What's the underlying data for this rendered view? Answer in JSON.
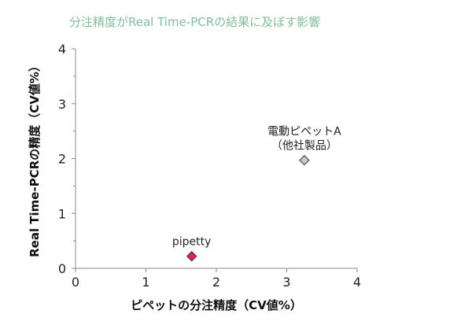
{
  "chart_data": {
    "type": "scatter",
    "title": "分注精度がReal Time-PCRの結果に及ぼす影響",
    "xlabel": "ピペットの分注精度（CV値%）",
    "ylabel": "Real Time-PCRの精度（CV値%）",
    "xlim": [
      0,
      4
    ],
    "ylim": [
      0,
      4
    ],
    "xticks": [
      "0",
      "1",
      "2",
      "3",
      "4"
    ],
    "yticks": [
      "0",
      "1",
      "2",
      "3",
      "4"
    ],
    "grid": false,
    "points": [
      {
        "label": "pipetty",
        "label_lines": [
          "pipetty"
        ],
        "x": 1.65,
        "y": 0.22,
        "color": "#e8197a"
      },
      {
        "label": "電動ピペットA（他社製品）",
        "label_lines": [
          "電動ピペットA",
          "（他社製品）"
        ],
        "x": 3.25,
        "y": 1.97,
        "color": "#c8c8c8"
      }
    ]
  }
}
